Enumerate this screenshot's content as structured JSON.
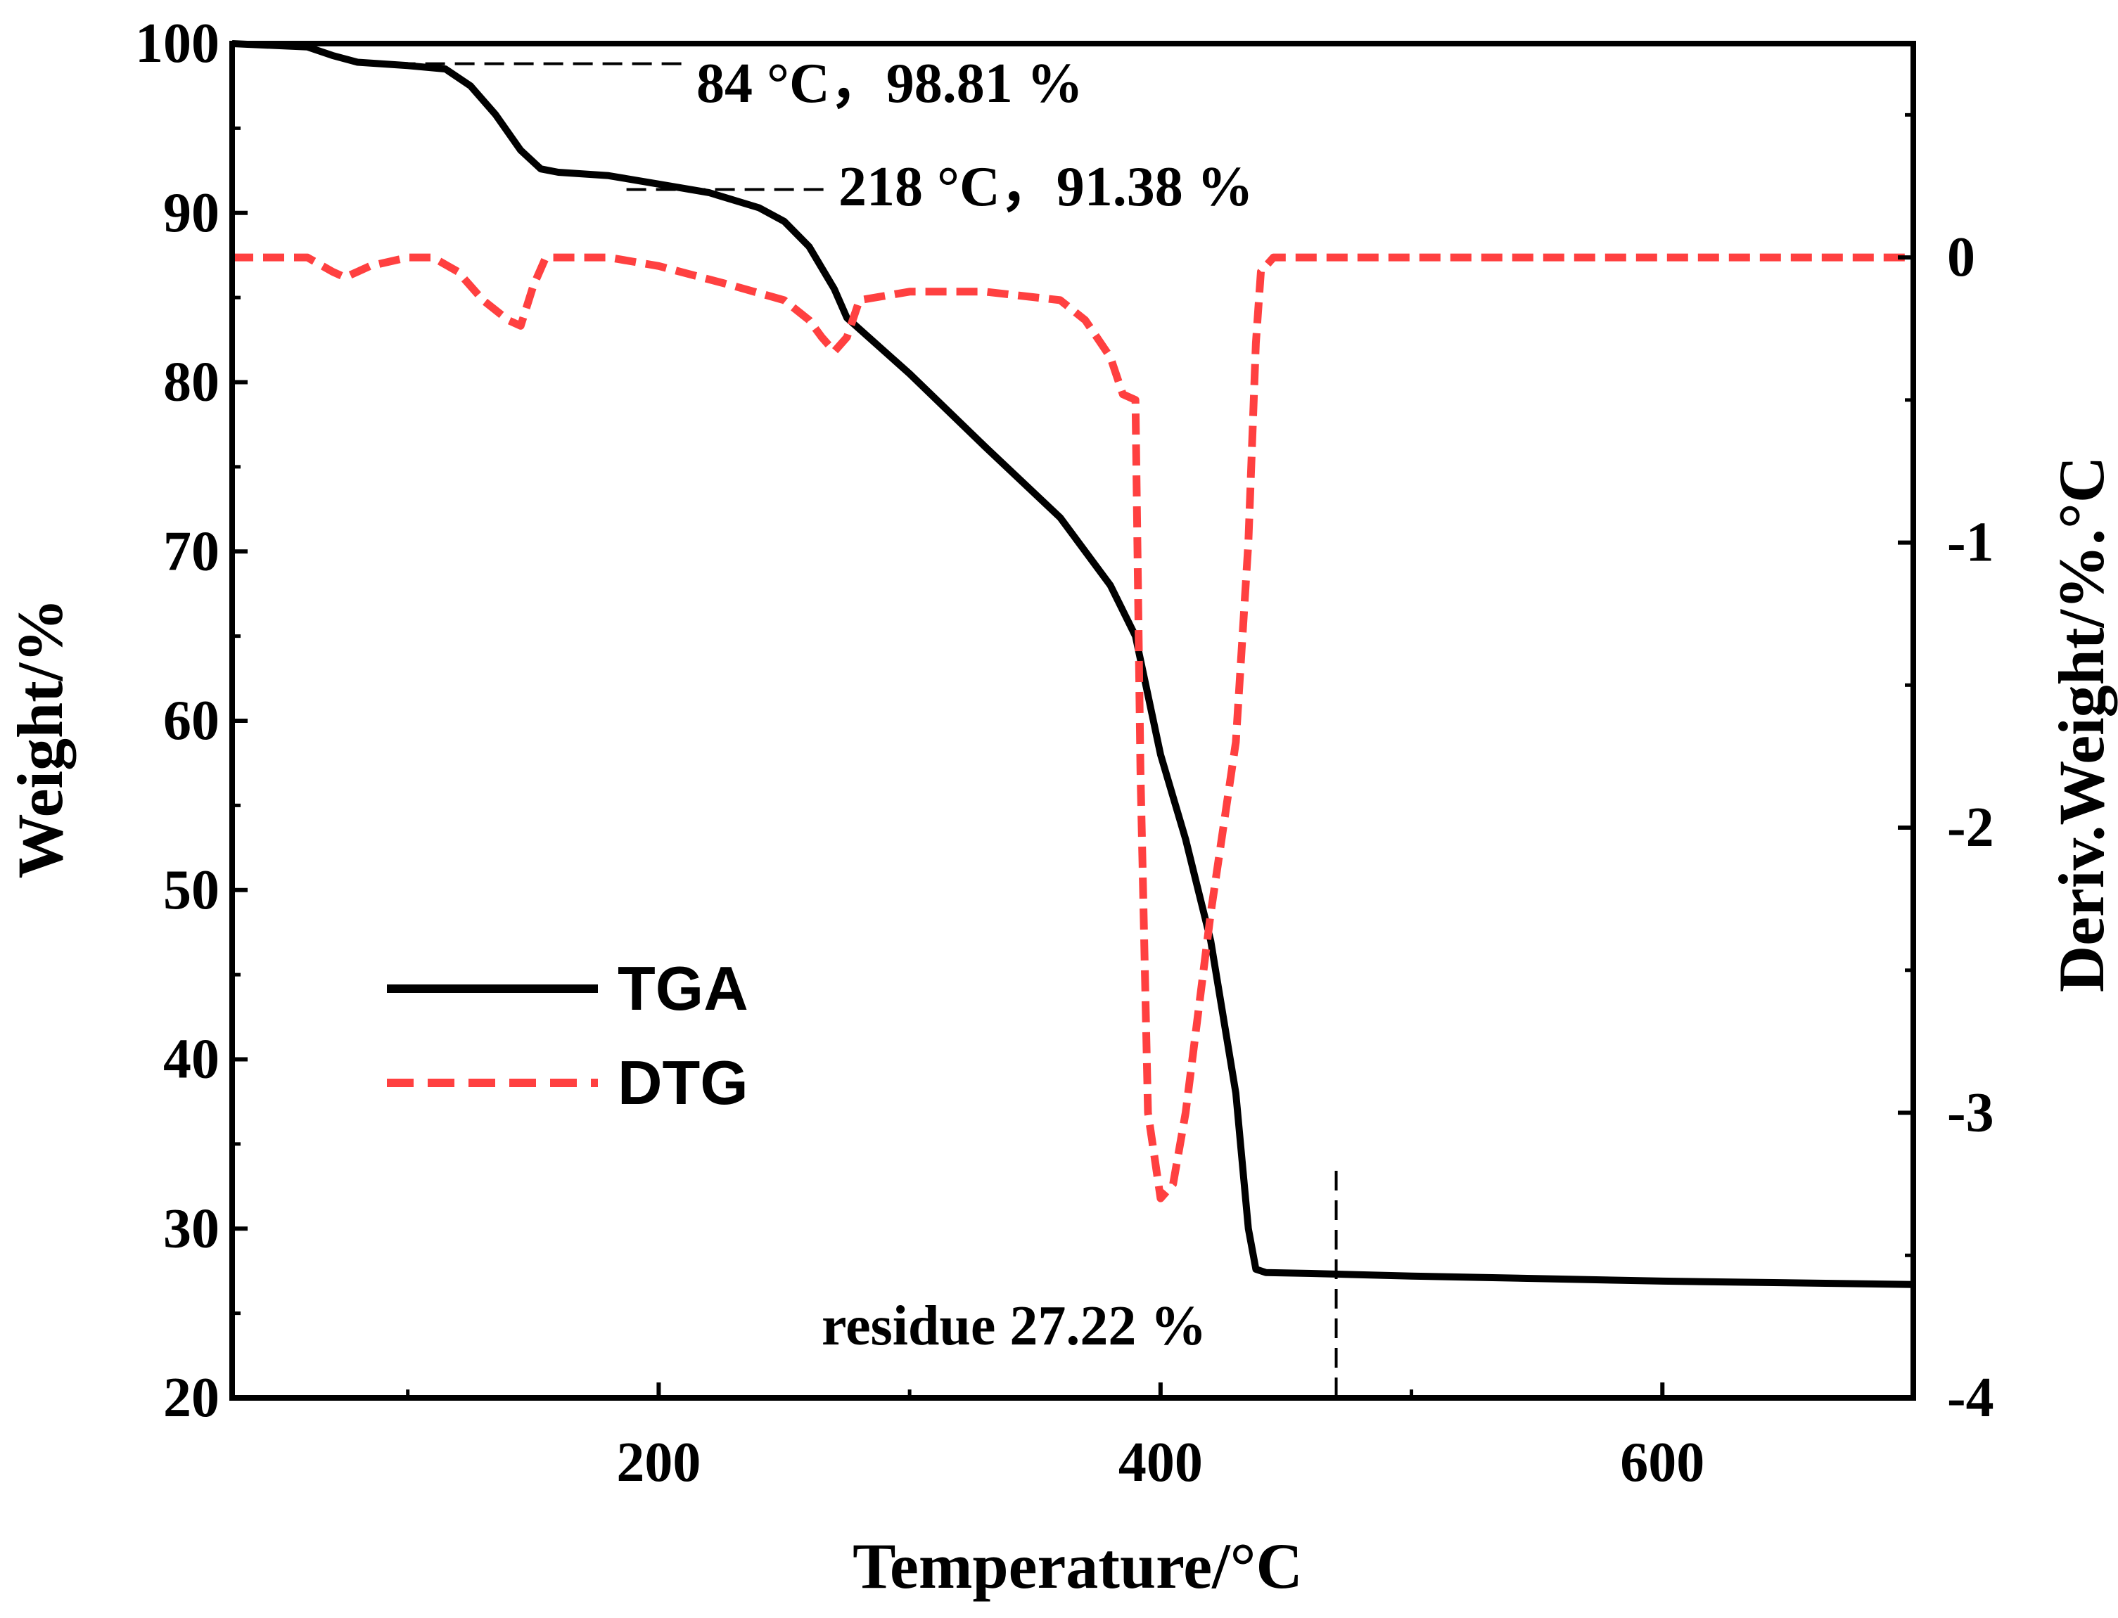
{
  "chart_data": {
    "type": "line",
    "title": "",
    "xlabel": "Temperature/°C",
    "ylabel": "Weight/%",
    "y2label": "Deriv.Weight/%.°C",
    "xlim": [
      30,
      700
    ],
    "ylim": [
      20,
      100
    ],
    "y2lim": [
      -4,
      0.75
    ],
    "xticks": [
      200,
      400,
      600
    ],
    "xticks_minor": [
      100,
      300,
      500
    ],
    "yticks": [
      20,
      30,
      40,
      50,
      60,
      70,
      80,
      90,
      100
    ],
    "y2ticks": [
      -4,
      -3,
      -2,
      -1,
      0
    ],
    "legend_position": "middle-left",
    "colors": {
      "tga": "#000000",
      "dtg": "#ff4040",
      "annotation": "#000000"
    },
    "series": [
      {
        "name": "TGA",
        "axis": "left",
        "style": "solid",
        "x": [
          30,
          60,
          70,
          80,
          100,
          115,
          125,
          135,
          145,
          153,
          160,
          180,
          200,
          220,
          240,
          250,
          260,
          270,
          275,
          300,
          330,
          360,
          380,
          390,
          400,
          410,
          420,
          430,
          435,
          438,
          442,
          460,
          500,
          600,
          700
        ],
        "y": [
          100,
          99.8,
          99.3,
          98.9,
          98.7,
          98.5,
          97.5,
          95.8,
          93.7,
          92.6,
          92.4,
          92.2,
          91.7,
          91.2,
          90.3,
          89.5,
          88,
          85.5,
          83.8,
          80.5,
          76.2,
          72,
          68,
          65,
          58,
          53,
          47,
          38,
          30,
          27.6,
          27.4,
          27.35,
          27.2,
          26.9,
          26.7
        ]
      },
      {
        "name": "DTG",
        "axis": "right",
        "style": "dashed",
        "x": [
          30,
          60,
          70,
          75,
          85,
          100,
          110,
          120,
          130,
          140,
          145,
          150,
          155,
          160,
          180,
          200,
          230,
          250,
          260,
          265,
          270,
          275,
          280,
          300,
          330,
          360,
          370,
          380,
          385,
          390,
          392,
          395,
          400,
          405,
          410,
          420,
          430,
          435,
          438,
          440,
          445,
          460,
          500,
          600,
          700
        ],
        "y": [
          0,
          0,
          -0.05,
          -0.07,
          -0.03,
          0,
          0,
          -0.05,
          -0.15,
          -0.22,
          -0.24,
          -0.1,
          0,
          0,
          0,
          -0.03,
          -0.1,
          -0.15,
          -0.22,
          -0.28,
          -0.33,
          -0.28,
          -0.15,
          -0.12,
          -0.12,
          -0.15,
          -0.22,
          -0.35,
          -0.48,
          -0.5,
          -1.8,
          -3,
          -3.3,
          -3.25,
          -3,
          -2.3,
          -1.7,
          -1,
          -0.3,
          -0.05,
          0,
          0,
          0,
          0,
          0
        ]
      }
    ],
    "annotations": [
      {
        "text": "84 °C，98.81 %",
        "x": 84,
        "y": 98.81,
        "axis": "left",
        "kind": "hline"
      },
      {
        "text": "218 °C，91.38 %",
        "x": 218,
        "y": 91.38,
        "axis": "left",
        "kind": "hline"
      },
      {
        "text": "residue 27.22 %",
        "x": 470,
        "y": 27.22,
        "axis": "left",
        "kind": "vline"
      }
    ]
  }
}
